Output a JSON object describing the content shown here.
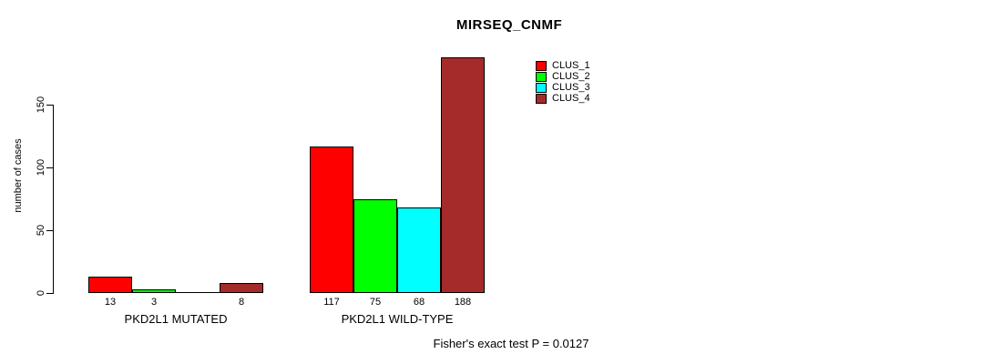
{
  "chart_data": {
    "type": "bar",
    "title": "MIRSEQ_CNMF",
    "ylabel": "number of cases",
    "ylim": [
      0,
      190
    ],
    "yticks": [
      0,
      50,
      100,
      150
    ],
    "grid": false,
    "legend_position": "top-right",
    "categories": [
      "PKD2L1 MUTATED",
      "PKD2L1 WILD-TYPE"
    ],
    "series": [
      {
        "name": "CLUS_1",
        "color": "#ff0000",
        "values": [
          13,
          117
        ]
      },
      {
        "name": "CLUS_2",
        "color": "#00ff00",
        "values": [
          3,
          75
        ]
      },
      {
        "name": "CLUS_3",
        "color": "#00ffff",
        "values": [
          0,
          68
        ]
      },
      {
        "name": "CLUS_4",
        "color": "#a52a2a",
        "values": [
          8,
          188
        ]
      }
    ],
    "bar_value_labels": [
      [
        "13",
        "3",
        "",
        "8"
      ],
      [
        "117",
        "75",
        "68",
        "188"
      ]
    ],
    "annotation": "Fisher's exact test P = 0.0127",
    "colors": {
      "axis": "#000000",
      "text": "#000000",
      "background": "#ffffff"
    }
  }
}
